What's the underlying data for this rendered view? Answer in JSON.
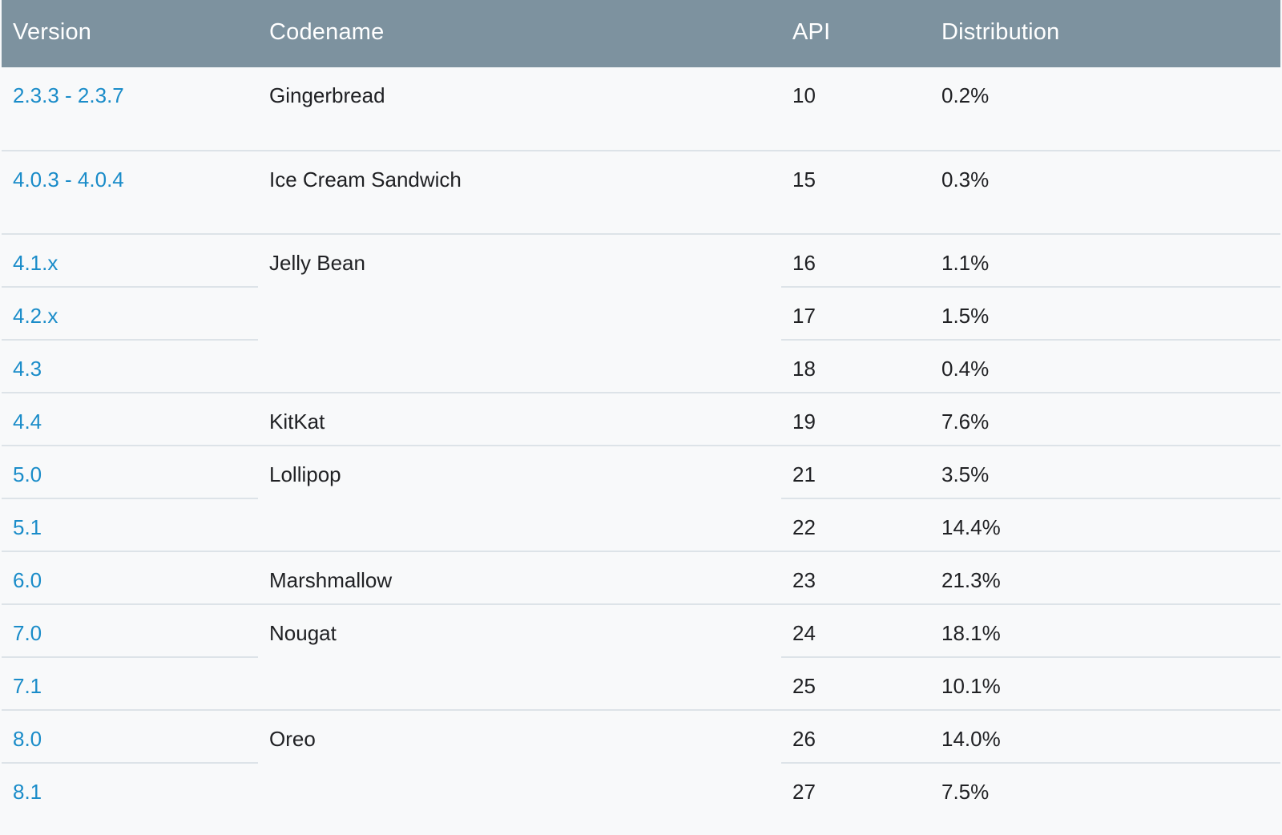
{
  "table": {
    "headers": {
      "version": "Version",
      "codename": "Codename",
      "api": "API",
      "distribution": "Distribution"
    },
    "rows": [
      {
        "version": "2.3.3 - 2.3.7",
        "codename": "Gingerbread",
        "api": "10",
        "distribution": "0.2%"
      },
      {
        "version": "4.0.3 - 4.0.4",
        "codename": "Ice Cream Sandwich",
        "api": "15",
        "distribution": "0.3%"
      },
      {
        "version": "4.1.x",
        "codename": "Jelly Bean",
        "api": "16",
        "distribution": "1.1%"
      },
      {
        "version": "4.2.x",
        "codename": "",
        "api": "17",
        "distribution": "1.5%"
      },
      {
        "version": "4.3",
        "codename": "",
        "api": "18",
        "distribution": "0.4%"
      },
      {
        "version": "4.4",
        "codename": "KitKat",
        "api": "19",
        "distribution": "7.6%"
      },
      {
        "version": "5.0",
        "codename": "Lollipop",
        "api": "21",
        "distribution": "3.5%"
      },
      {
        "version": "5.1",
        "codename": "",
        "api": "22",
        "distribution": "14.4%"
      },
      {
        "version": "6.0",
        "codename": "Marshmallow",
        "api": "23",
        "distribution": "21.3%"
      },
      {
        "version": "7.0",
        "codename": "Nougat",
        "api": "24",
        "distribution": "18.1%"
      },
      {
        "version": "7.1",
        "codename": "",
        "api": "25",
        "distribution": "10.1%"
      },
      {
        "version": "8.0",
        "codename": "Oreo",
        "api": "26",
        "distribution": "14.0%"
      },
      {
        "version": "8.1",
        "codename": "",
        "api": "27",
        "distribution": "7.5%"
      }
    ]
  },
  "colors": {
    "header_background": "#7d929f",
    "header_text": "#ffffff",
    "link": "#1a8cc9",
    "row_background": "#f8f9fa",
    "divider": "#dde3e8"
  }
}
